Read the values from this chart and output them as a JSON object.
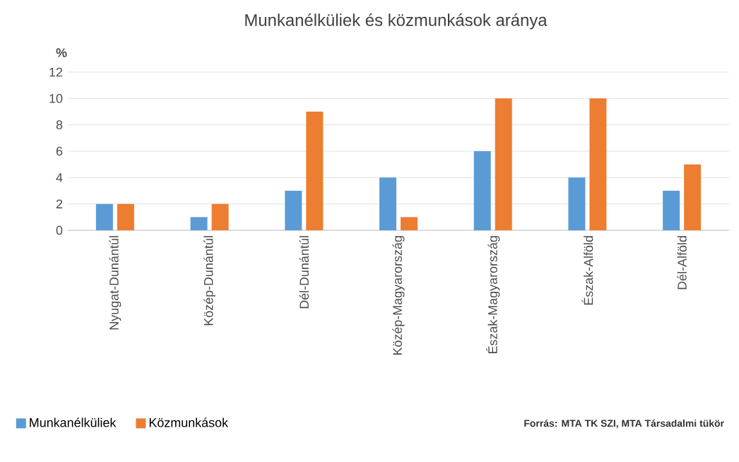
{
  "chart_data": {
    "type": "bar",
    "title": "Munkanélküliek és közmunkások aránya",
    "ylabel": "%",
    "categories": [
      "Nyugat-Dunántúl",
      "Közép-Dunántúl",
      "Dél-Dunántúl",
      "Közép-Magyarország",
      "Észak-Magyarország",
      "Észak-Alföld",
      "Dél-Alföld"
    ],
    "series": [
      {
        "name": "Munkanélküliek",
        "color": "#5b9bd5",
        "values": [
          2,
          1,
          3,
          4,
          6,
          4,
          3
        ]
      },
      {
        "name": "Közmunkások",
        "color": "#ed7d31",
        "values": [
          2,
          2,
          9,
          1,
          10,
          10,
          5
        ]
      }
    ],
    "ylim": [
      0,
      12
    ],
    "yticks": [
      0,
      2,
      4,
      6,
      8,
      10,
      12
    ],
    "grid": "y",
    "legend": "bottom left",
    "annotations": [
      "Forrás: MTA TK SZI, MTA Társadalmi tükör"
    ]
  }
}
